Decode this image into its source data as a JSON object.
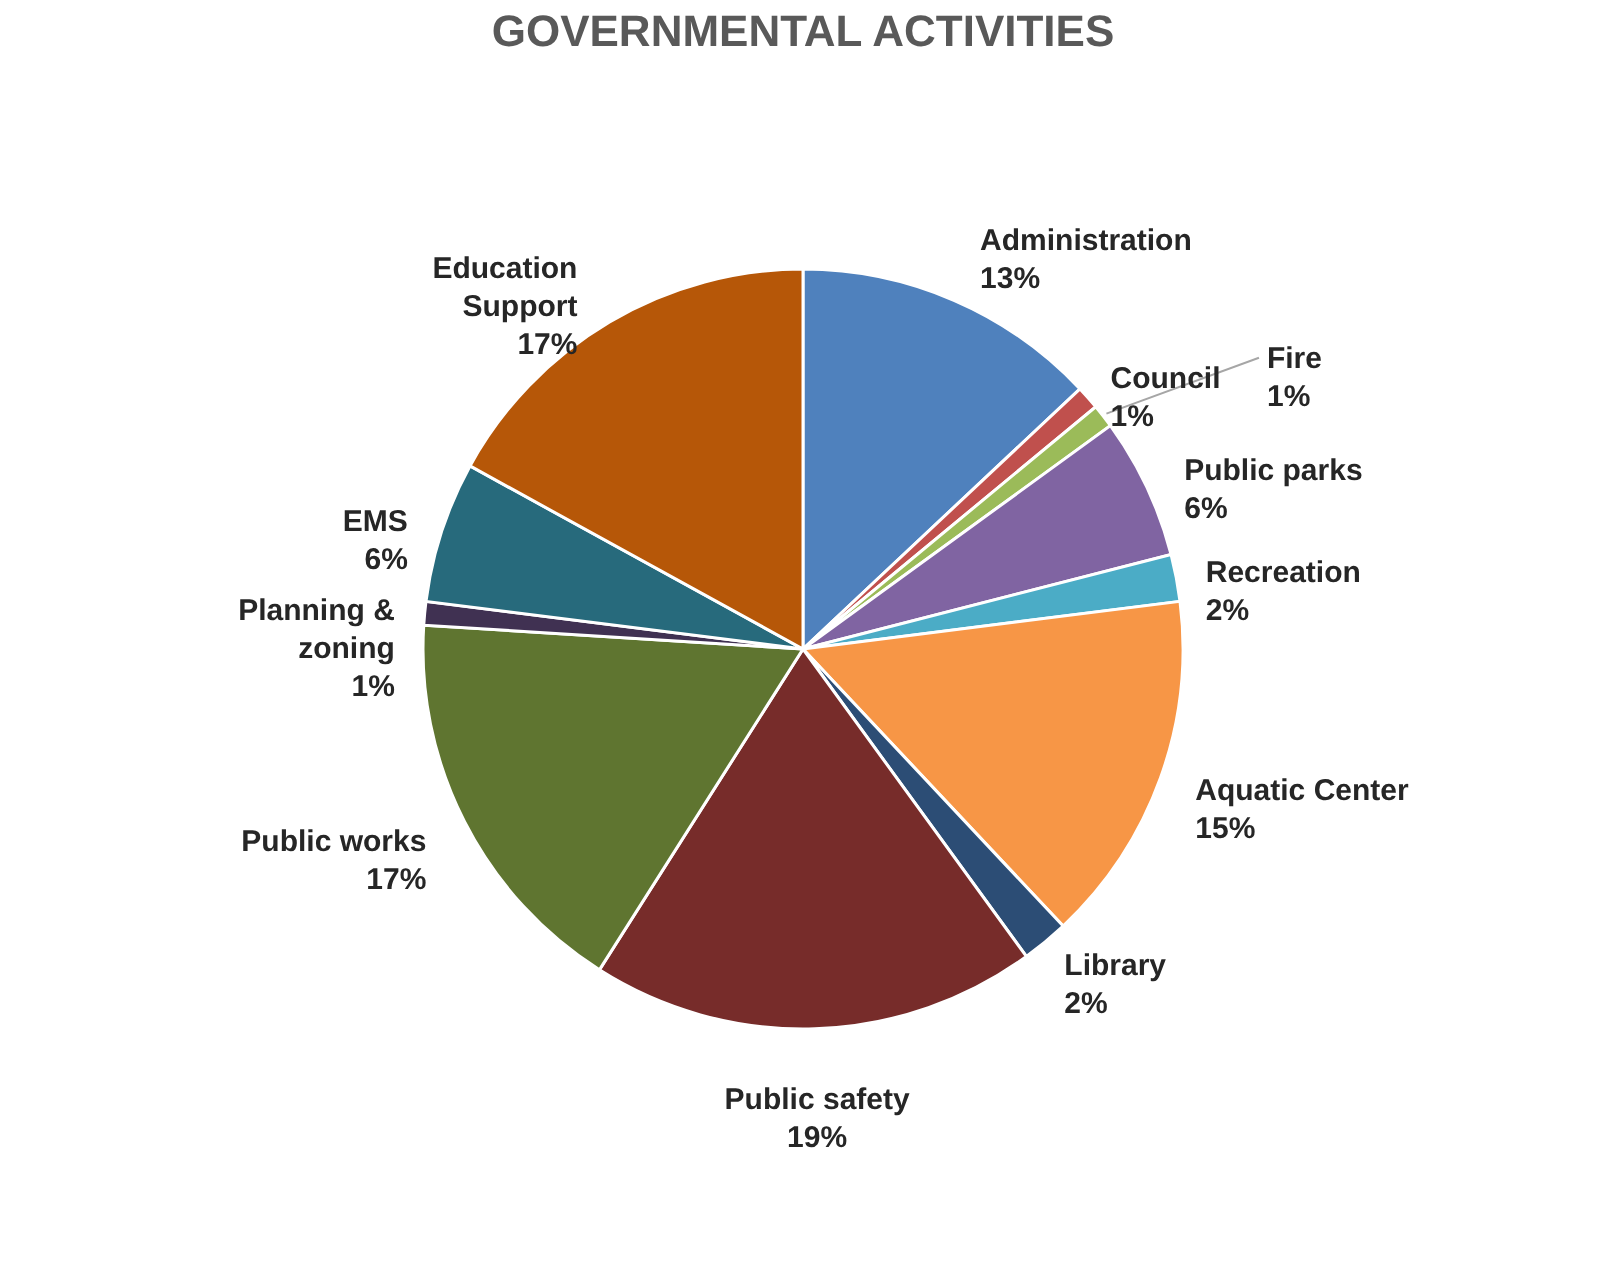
{
  "chart_data": {
    "type": "pie",
    "title": "GOVERNMENTAL ACTIVITIES",
    "categories": [
      "Administration",
      "Council",
      "Fire",
      "Public parks",
      "Recreation",
      "Aquatic Center",
      "Library",
      "Public safety",
      "Public works",
      "Planning & zoning",
      "EMS",
      "Education Support"
    ],
    "values": [
      13,
      1,
      1,
      6,
      2,
      15,
      2,
      19,
      17,
      1,
      6,
      17
    ],
    "colors": [
      "#4f81bd",
      "#c0504d",
      "#9bbb59",
      "#8064a2",
      "#4bacc6",
      "#f79646",
      "#2c4d75",
      "#772c2a",
      "#5f7530",
      "#403152",
      "#276a7c",
      "#b65708"
    ],
    "value_labels": [
      "13%",
      "1%",
      "1%",
      "6%",
      "2%",
      "15%",
      "2%",
      "19%",
      "17%",
      "1%",
      "6%",
      "17%"
    ],
    "legend": false
  }
}
